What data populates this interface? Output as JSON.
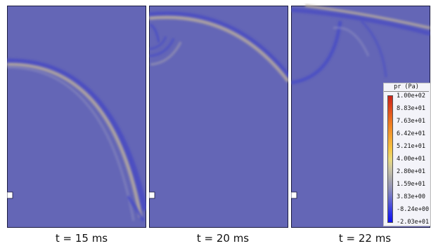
{
  "panels": [
    {
      "caption": "t = 15 ms"
    },
    {
      "caption": "t = 20 ms"
    },
    {
      "caption": "t = 22 ms"
    }
  ],
  "legend": {
    "title": "pr (Pa)",
    "ticks": [
      "1.00e+02",
      "8.83e+01",
      "7.63e+01",
      "6.42e+01",
      "5.21e+01",
      "4.00e+01",
      "2.80e+01",
      "1.59e+01",
      "3.83e+00",
      "-8.24e+00",
      "-2.03e+01"
    ]
  },
  "colors": {
    "field": "#6466b6",
    "wave_front": "#b9ad9e",
    "low_pressure": "#4448c8",
    "frame": "#1a1a40"
  }
}
